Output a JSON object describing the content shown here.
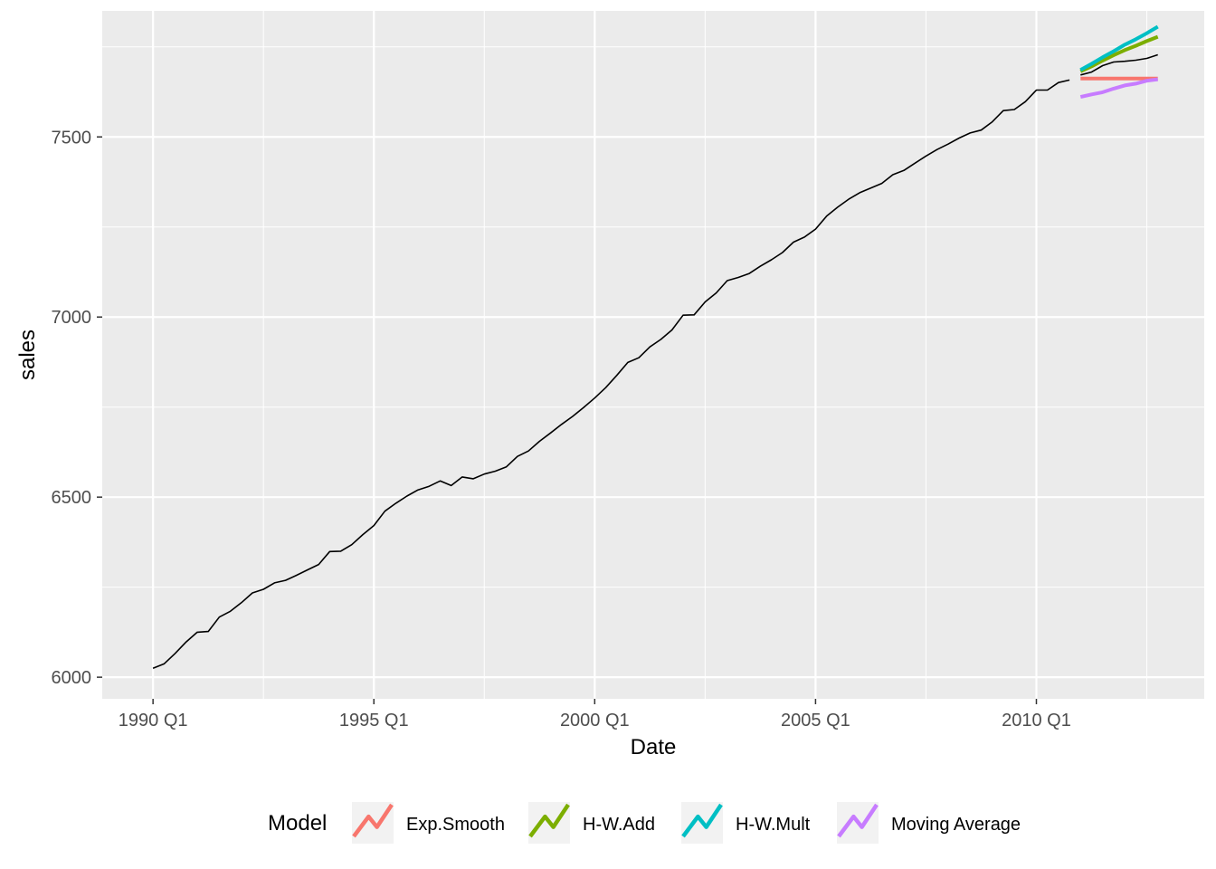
{
  "chart_data": {
    "type": "line",
    "xlabel": "Date",
    "ylabel": "sales",
    "xlim": [
      1988.85,
      2013.8
    ],
    "ylim": [
      5940,
      7850
    ],
    "x_ticks": [
      {
        "value": 1990,
        "label": "1990 Q1"
      },
      {
        "value": 1995,
        "label": "1995 Q1"
      },
      {
        "value": 2000,
        "label": "2000 Q1"
      },
      {
        "value": 2005,
        "label": "2005 Q1"
      },
      {
        "value": 2010,
        "label": "2010 Q1"
      }
    ],
    "y_ticks": [
      {
        "value": 6000,
        "label": "6000"
      },
      {
        "value": 6500,
        "label": "6500"
      },
      {
        "value": 7000,
        "label": "7000"
      },
      {
        "value": 7500,
        "label": "7500"
      }
    ],
    "grid": true,
    "legend": {
      "title": "Model",
      "position": "bottom",
      "entries": [
        "Exp.Smooth",
        "H-W.Add",
        "H-W.Mult",
        "Moving Average"
      ]
    },
    "actual": {
      "color": "#000000",
      "segments": [
        {
          "x": [
            1990.0,
            1990.25,
            1990.5,
            1990.75,
            1991.0,
            1991.25,
            1991.5,
            1991.75,
            1992.0,
            1992.25,
            1992.5,
            1992.75,
            1993.0,
            1993.25,
            1993.5,
            1993.75,
            1994.0,
            1994.25,
            1994.5,
            1994.75,
            1995.0,
            1995.25,
            1995.5,
            1995.75,
            1996.0,
            1996.25,
            1996.5,
            1996.75,
            1997.0,
            1997.25,
            1997.5,
            1997.75,
            1998.0,
            1998.25,
            1998.5,
            1998.75,
            1999.0,
            1999.25,
            1999.5,
            1999.75,
            2000.0,
            2000.25,
            2000.5,
            2000.75,
            2001.0,
            2001.25,
            2001.5,
            2001.75,
            2002.0,
            2002.25,
            2002.5,
            2002.75,
            2003.0,
            2003.25,
            2003.5,
            2003.75,
            2004.0,
            2004.25,
            2004.5,
            2004.75,
            2005.0,
            2005.25,
            2005.5,
            2005.75,
            2006.0,
            2006.25,
            2006.5,
            2006.75,
            2007.0,
            2007.25,
            2007.5,
            2007.75,
            2008.0,
            2008.25,
            2008.5,
            2008.75,
            2009.0,
            2009.25,
            2009.5,
            2009.75,
            2010.0,
            2010.25,
            2010.5,
            2010.75
          ],
          "y": [
            6025,
            6037,
            6066,
            6098,
            6125,
            6127,
            6167,
            6183,
            6207,
            6234,
            6244,
            6262,
            6269,
            6283,
            6298,
            6313,
            6349,
            6350,
            6368,
            6396,
            6421,
            6461,
            6483,
            6503,
            6520,
            6530,
            6545,
            6532,
            6556,
            6551,
            6564,
            6572,
            6584,
            6613,
            6628,
            6655,
            6678,
            6702,
            6724,
            6749,
            6775,
            6804,
            6838,
            6874,
            6887,
            6917,
            6938,
            6964,
            7005,
            7006,
            7042,
            7067,
            7101,
            7110,
            7121,
            7141,
            7159,
            7179,
            7208,
            7222,
            7244,
            7280,
            7305,
            7327,
            7345,
            7358,
            7371,
            7395,
            7407,
            7427,
            7447,
            7465,
            7480,
            7497,
            7511,
            7519,
            7542,
            7573,
            7576,
            7598,
            7630,
            7630,
            7651,
            7658
          ]
        },
        {
          "x": [
            2011.0,
            2011.25,
            2011.5,
            2011.75,
            2012.0,
            2012.25,
            2012.5,
            2012.75
          ],
          "y": [
            7672,
            7680,
            7698,
            7708,
            7710,
            7713,
            7718,
            7728
          ]
        }
      ]
    },
    "series": [
      {
        "name": "Exp.Smooth",
        "color": "#F8766D",
        "x": [
          2011.0,
          2011.25,
          2011.5,
          2011.75,
          2012.0,
          2012.25,
          2012.5,
          2012.75
        ],
        "y": [
          7662,
          7662,
          7662,
          7662,
          7662,
          7662,
          7662,
          7662
        ]
      },
      {
        "name": "H-W.Add",
        "color": "#7CAE00",
        "x": [
          2011.0,
          2011.25,
          2011.5,
          2011.75,
          2012.0,
          2012.25,
          2012.5,
          2012.75
        ],
        "y": [
          7682,
          7696,
          7712,
          7727,
          7741,
          7753,
          7766,
          7778
        ]
      },
      {
        "name": "H-W.Mult",
        "color": "#00BFC4",
        "x": [
          2011.0,
          2011.25,
          2011.5,
          2011.75,
          2012.0,
          2012.25,
          2012.5,
          2012.75
        ],
        "y": [
          7686,
          7703,
          7721,
          7738,
          7756,
          7771,
          7788,
          7806
        ]
      },
      {
        "name": "Moving Average",
        "color": "#C77CFF",
        "x": [
          2011.0,
          2011.25,
          2011.5,
          2011.75,
          2012.0,
          2012.25,
          2012.5,
          2012.75
        ],
        "y": [
          7611,
          7618,
          7624,
          7634,
          7643,
          7648,
          7656,
          7660
        ]
      }
    ]
  }
}
